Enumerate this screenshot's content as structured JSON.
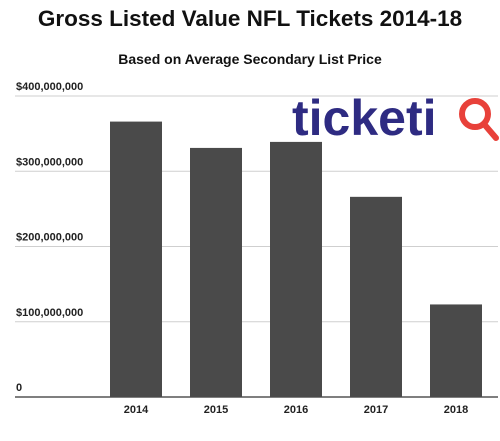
{
  "chart_data": {
    "type": "bar",
    "title": "Gross Listed Value NFL Tickets 2014-18",
    "subtitle": "Based on Average Secondary List Price",
    "categories": [
      "2014",
      "2015",
      "2016",
      "2017",
      "2018"
    ],
    "values": [
      366000000,
      331000000,
      339000000,
      266000000,
      123000000
    ],
    "ylim": [
      0,
      400000000
    ],
    "yticks": [
      {
        "value": 0,
        "label": "0"
      },
      {
        "value": 100000000,
        "label": "$100,000,000"
      },
      {
        "value": 200000000,
        "label": "$200,000,000"
      },
      {
        "value": 300000000,
        "label": "$300,000,000"
      },
      {
        "value": 400000000,
        "label": "$400,000,000"
      }
    ],
    "xlabel": "",
    "ylabel": "",
    "grid": true,
    "bar_color": "#4a4a4a",
    "grid_color": "#cfcfcf"
  },
  "logo": {
    "text": "ticketiQ",
    "text_main": "ticket",
    "text_i": "i",
    "color_main": "#2e2b82",
    "color_accent": "#e8413a"
  }
}
